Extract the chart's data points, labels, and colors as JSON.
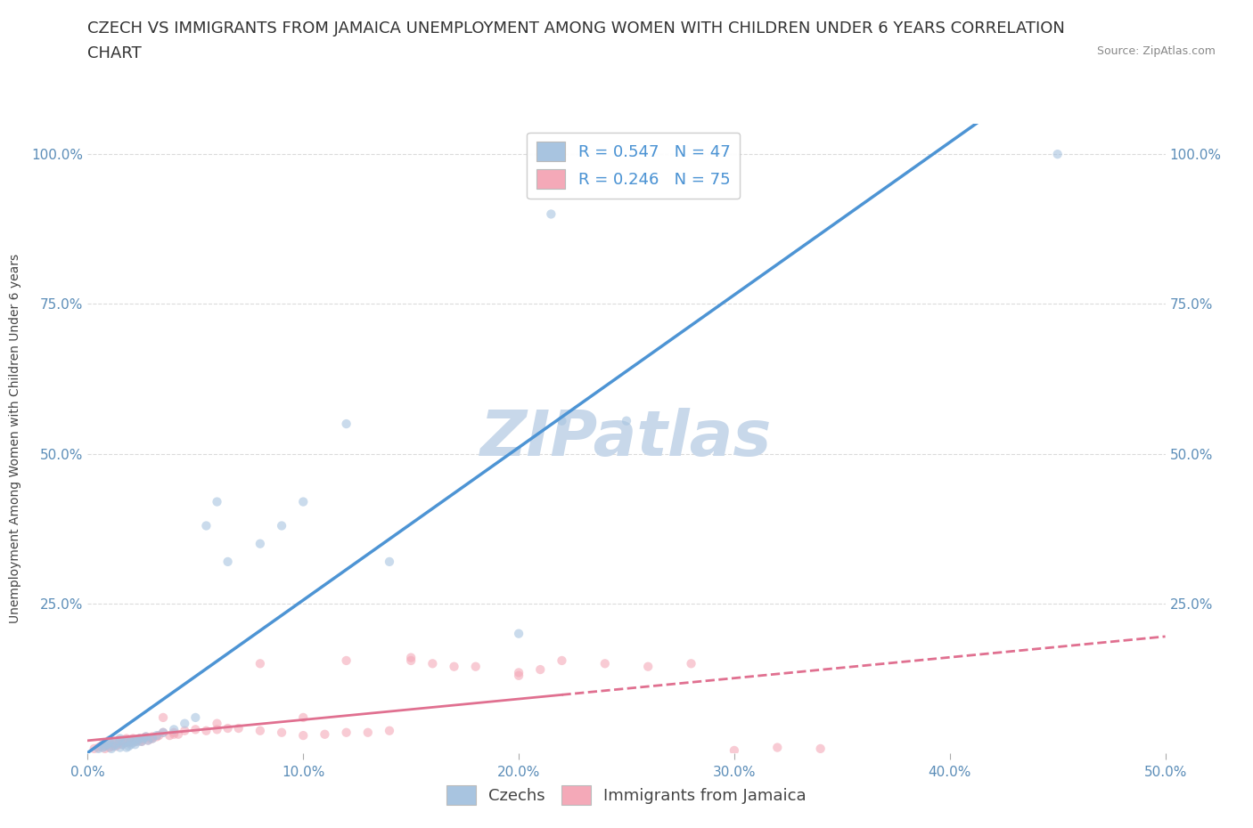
{
  "title_line1": "CZECH VS IMMIGRANTS FROM JAMAICA UNEMPLOYMENT AMONG WOMEN WITH CHILDREN UNDER 6 YEARS CORRELATION",
  "title_line2": "CHART",
  "source_text": "Source: ZipAtlas.com",
  "ylabel": "Unemployment Among Women with Children Under 6 years",
  "xlim": [
    0.0,
    0.5
  ],
  "ylim": [
    0.0,
    1.05
  ],
  "xtick_labels": [
    "0.0%",
    "10.0%",
    "20.0%",
    "30.0%",
    "40.0%",
    "50.0%"
  ],
  "xtick_values": [
    0.0,
    0.1,
    0.2,
    0.3,
    0.4,
    0.5
  ],
  "ytick_labels": [
    "25.0%",
    "50.0%",
    "75.0%",
    "100.0%"
  ],
  "ytick_values": [
    0.25,
    0.5,
    0.75,
    1.0
  ],
  "czech_color": "#a8c4e0",
  "jamaica_color": "#f4a9b8",
  "czech_line_color": "#4d94d4",
  "jamaica_line_color": "#e07090",
  "czech_R": 0.547,
  "czech_N": 47,
  "jamaica_R": 0.246,
  "jamaica_N": 75,
  "watermark": "ZIPatlas",
  "background_color": "#ffffff",
  "grid_color": "#d8d8d8",
  "czech_scatter_x": [
    0.005,
    0.007,
    0.008,
    0.009,
    0.01,
    0.01,
    0.011,
    0.012,
    0.013,
    0.014,
    0.015,
    0.015,
    0.016,
    0.017,
    0.018,
    0.018,
    0.019,
    0.02,
    0.02,
    0.021,
    0.022,
    0.022,
    0.023,
    0.024,
    0.025,
    0.026,
    0.027,
    0.028,
    0.03,
    0.032,
    0.035,
    0.04,
    0.045,
    0.05,
    0.055,
    0.06,
    0.065,
    0.08,
    0.09,
    0.1,
    0.12,
    0.14,
    0.2,
    0.22,
    0.25,
    0.45,
    0.215
  ],
  "czech_scatter_y": [
    0.008,
    0.01,
    0.012,
    0.015,
    0.018,
    0.022,
    0.008,
    0.012,
    0.015,
    0.02,
    0.025,
    0.01,
    0.015,
    0.018,
    0.02,
    0.01,
    0.012,
    0.015,
    0.02,
    0.018,
    0.022,
    0.015,
    0.02,
    0.025,
    0.02,
    0.025,
    0.028,
    0.022,
    0.025,
    0.03,
    0.035,
    0.04,
    0.05,
    0.06,
    0.38,
    0.42,
    0.32,
    0.35,
    0.38,
    0.42,
    0.55,
    0.32,
    0.2,
    0.555,
    0.555,
    1.0,
    0.9
  ],
  "jamaica_scatter_x": [
    0.003,
    0.005,
    0.006,
    0.007,
    0.008,
    0.008,
    0.009,
    0.01,
    0.01,
    0.011,
    0.012,
    0.012,
    0.013,
    0.014,
    0.015,
    0.015,
    0.016,
    0.017,
    0.018,
    0.018,
    0.019,
    0.02,
    0.02,
    0.021,
    0.022,
    0.023,
    0.024,
    0.025,
    0.026,
    0.027,
    0.028,
    0.029,
    0.03,
    0.032,
    0.033,
    0.035,
    0.038,
    0.04,
    0.042,
    0.045,
    0.05,
    0.055,
    0.06,
    0.065,
    0.07,
    0.08,
    0.09,
    0.1,
    0.11,
    0.12,
    0.13,
    0.14,
    0.15,
    0.16,
    0.17,
    0.18,
    0.2,
    0.21,
    0.22,
    0.24,
    0.26,
    0.28,
    0.3,
    0.32,
    0.34,
    0.2,
    0.15,
    0.12,
    0.1,
    0.08,
    0.06,
    0.04,
    0.035,
    0.03,
    0.025
  ],
  "jamaica_scatter_y": [
    0.008,
    0.01,
    0.012,
    0.015,
    0.008,
    0.012,
    0.015,
    0.01,
    0.018,
    0.012,
    0.015,
    0.02,
    0.012,
    0.015,
    0.018,
    0.022,
    0.015,
    0.018,
    0.02,
    0.025,
    0.018,
    0.02,
    0.022,
    0.025,
    0.02,
    0.022,
    0.025,
    0.02,
    0.025,
    0.028,
    0.022,
    0.025,
    0.025,
    0.028,
    0.03,
    0.035,
    0.03,
    0.035,
    0.032,
    0.038,
    0.04,
    0.038,
    0.04,
    0.042,
    0.042,
    0.038,
    0.035,
    0.03,
    0.032,
    0.035,
    0.035,
    0.038,
    0.16,
    0.15,
    0.145,
    0.145,
    0.135,
    0.14,
    0.155,
    0.15,
    0.145,
    0.15,
    0.005,
    0.01,
    0.008,
    0.13,
    0.155,
    0.155,
    0.06,
    0.15,
    0.05,
    0.032,
    0.06,
    0.028,
    0.022
  ],
  "title_fontsize": 13,
  "axis_label_fontsize": 10,
  "tick_fontsize": 11,
  "legend_fontsize": 13,
  "watermark_fontsize": 52,
  "watermark_color": "#c8d8ea",
  "scatter_size": 55,
  "scatter_alpha": 0.6
}
